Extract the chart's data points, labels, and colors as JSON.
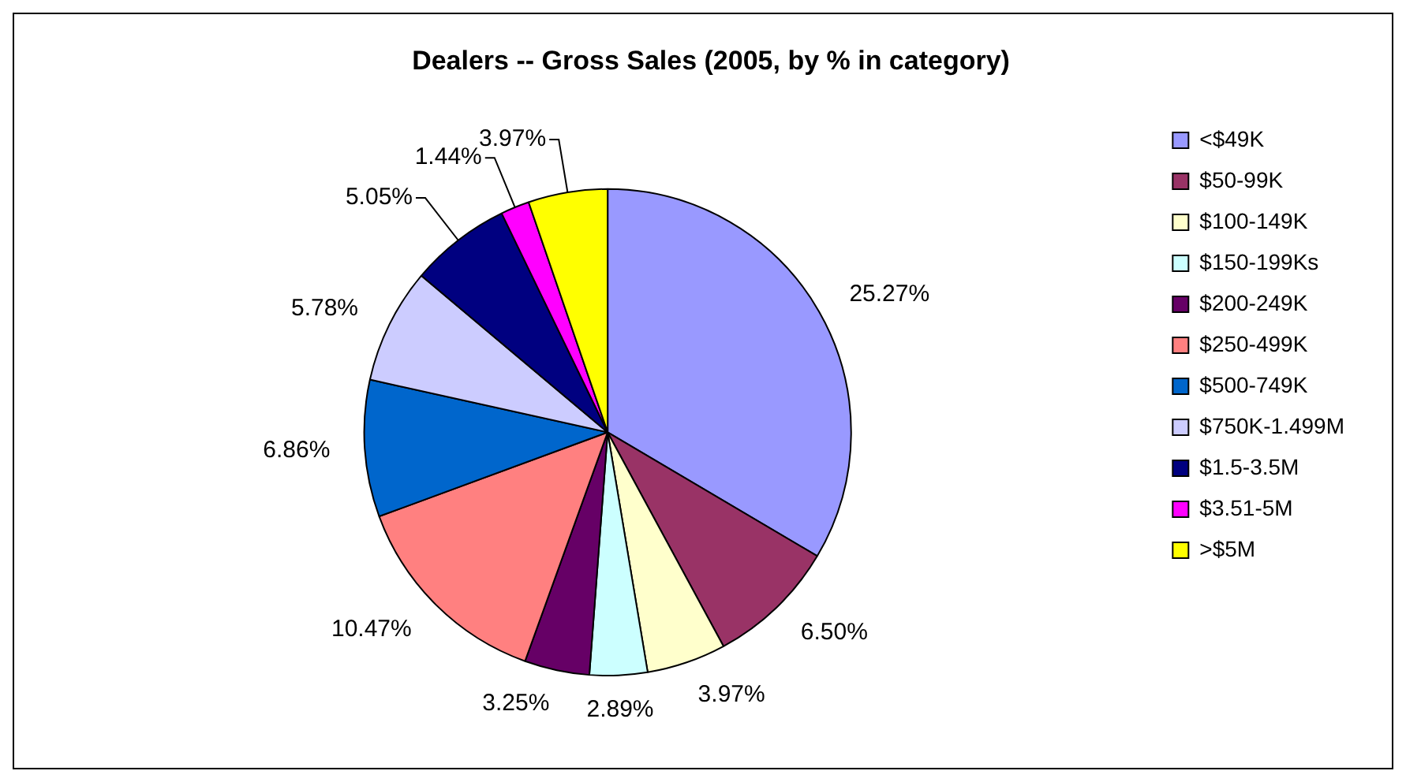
{
  "chart_data": {
    "type": "pie",
    "title": "Dealers -- Gross Sales (2005, by % in category)",
    "categories": [
      "<$49K",
      "$50-99K",
      "$100-149K",
      "$150-199Ks",
      "$200-249K",
      "$250-499K",
      "$500-749K",
      "$750K-1.499M",
      "$1.5-3.5M",
      "$3.51-5M",
      ">$5M"
    ],
    "values": [
      25.27,
      6.5,
      3.97,
      2.89,
      3.25,
      10.47,
      6.86,
      5.78,
      5.05,
      1.44,
      3.97
    ],
    "value_labels": [
      "25.27%",
      "6.50%",
      "3.97%",
      "2.89%",
      "3.25%",
      "10.47%",
      "6.86%",
      "5.78%",
      "5.05%",
      "1.44%",
      "3.97%"
    ],
    "colors": [
      "#9999ff",
      "#993366",
      "#ffffcc",
      "#ccffff",
      "#660066",
      "#ff8080",
      "#0066cc",
      "#ccccff",
      "#000080",
      "#ff00ff",
      "#ffff00"
    ],
    "legend": "right"
  }
}
